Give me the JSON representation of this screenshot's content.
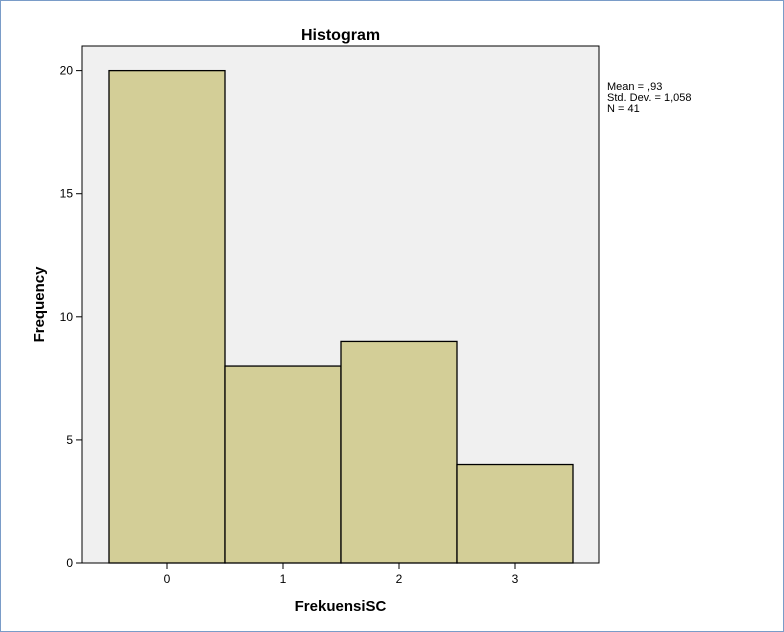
{
  "chart_data": {
    "type": "bar",
    "title": "Histogram",
    "xlabel": "FrekuensiSC",
    "ylabel": "Frequency",
    "categories": [
      "0",
      "1",
      "2",
      "3"
    ],
    "values": [
      20,
      8,
      9,
      4
    ],
    "ylim": [
      0,
      21
    ],
    "yticks": [
      0,
      5,
      10,
      15,
      20
    ],
    "grid": false,
    "bar_color": "#d3ce97",
    "plot_background": "#f0f0f0",
    "stats": [
      "Mean = ,93",
      "Std. Dev. = 1,058",
      "N = 41"
    ]
  }
}
